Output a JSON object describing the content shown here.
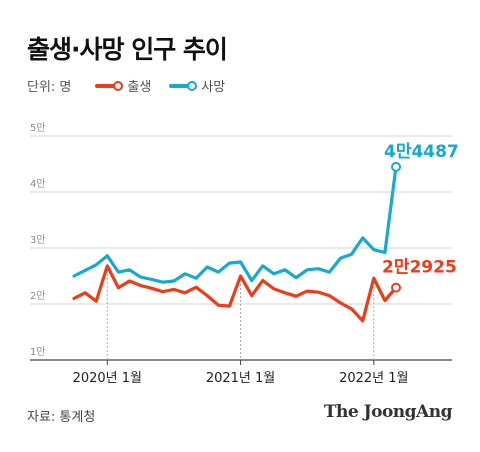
{
  "header": {
    "title": "출생·사망 인구 추이"
  },
  "legend": {
    "unit": "단위: 명",
    "items": [
      {
        "label": "출생",
        "color": "#ef3b16"
      },
      {
        "label": "사망",
        "color": "#18a9d3"
      }
    ]
  },
  "footer": {
    "source": "자료: 통계청",
    "brand": "The JoongAng"
  },
  "chart_data": {
    "type": "line",
    "ylim": [
      10000,
      50000
    ],
    "y_ticks": [
      {
        "value": 10000,
        "label": "1만"
      },
      {
        "value": 20000,
        "label": "2만"
      },
      {
        "value": 30000,
        "label": "3만"
      },
      {
        "value": 40000,
        "label": "4만"
      },
      {
        "value": 50000,
        "label": "5만"
      }
    ],
    "x": [
      "2019-10",
      "2019-11",
      "2019-12",
      "2020-01",
      "2020-02",
      "2020-03",
      "2020-04",
      "2020-05",
      "2020-06",
      "2020-07",
      "2020-08",
      "2020-09",
      "2020-10",
      "2020-11",
      "2020-12",
      "2021-01",
      "2021-02",
      "2021-03",
      "2021-04",
      "2021-05",
      "2021-06",
      "2021-07",
      "2021-08",
      "2021-09",
      "2021-10",
      "2021-11",
      "2021-12",
      "2022-01",
      "2022-02",
      "2022-03"
    ],
    "x_ticks": [
      {
        "index": 3,
        "label": "2020년 1월"
      },
      {
        "index": 15,
        "label": "2021년 1월"
      },
      {
        "index": 27,
        "label": "2022년 1월"
      }
    ],
    "series": [
      {
        "name": "출생",
        "color": "#ef3b16",
        "values": [
          21000,
          22000,
          20500,
          26800,
          22900,
          24100,
          23300,
          22800,
          22200,
          22600,
          22000,
          23000,
          21500,
          19800,
          19600,
          25000,
          21500,
          24200,
          22700,
          22000,
          21400,
          22300,
          22100,
          21500,
          20200,
          19100,
          17000,
          24600,
          20600,
          22925
        ],
        "end_label": "2만2925"
      },
      {
        "name": "사망",
        "color": "#18a9d3",
        "values": [
          25000,
          26000,
          27000,
          28600,
          25700,
          26100,
          24800,
          24400,
          23900,
          24100,
          25400,
          24600,
          26600,
          25700,
          27300,
          27500,
          24200,
          26800,
          25400,
          26100,
          24700,
          26100,
          26300,
          25700,
          28200,
          28900,
          31800,
          29700,
          29200,
          44487
        ],
        "end_label": "4만4487"
      }
    ]
  }
}
